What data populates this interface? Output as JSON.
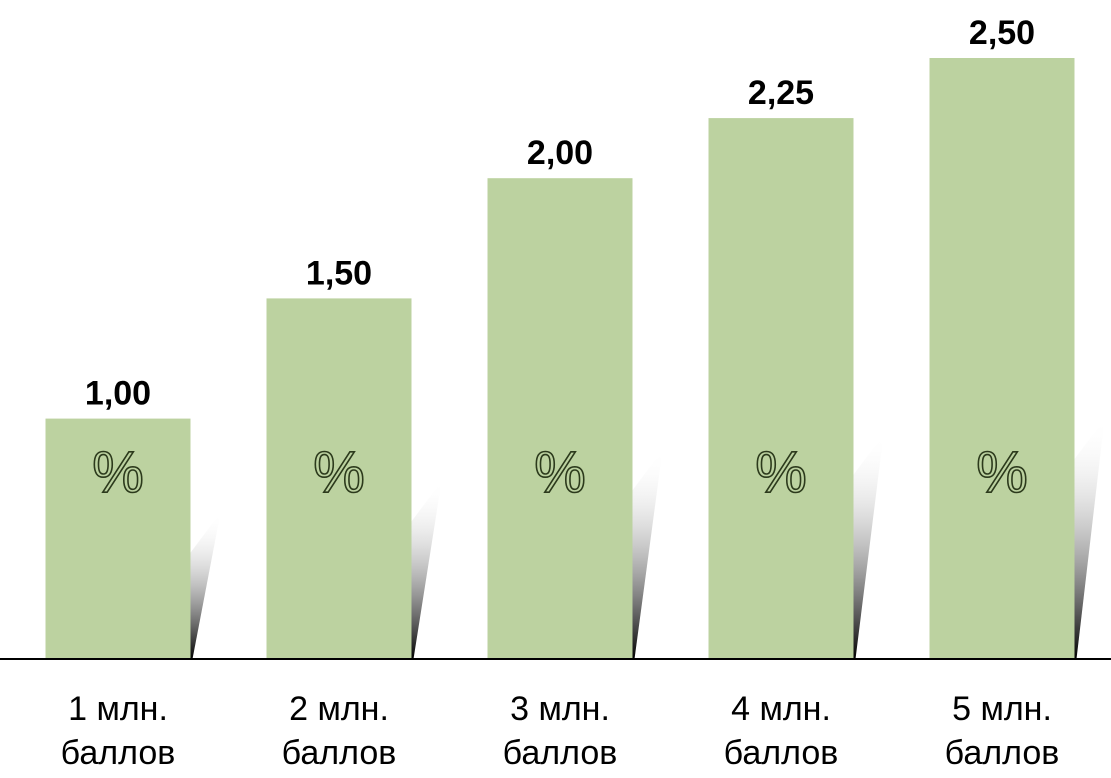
{
  "chart_data": {
    "type": "bar",
    "categories": [
      [
        "1 млн.",
        "баллов"
      ],
      [
        "2 млн.",
        "баллов"
      ],
      [
        "3 млн.",
        "баллов"
      ],
      [
        "4 млн.",
        "баллов"
      ],
      [
        "5  млн.",
        "баллов"
      ]
    ],
    "values": [
      1.0,
      1.5,
      2.0,
      2.25,
      2.5
    ],
    "data_labels": [
      "1,00",
      "1,50",
      "2,00",
      "2,25",
      "2,50"
    ],
    "bar_symbol": "%",
    "ylim": [
      0,
      2.5
    ],
    "grid": false,
    "legend": "none",
    "colors": {
      "bar": "#bcd2a0",
      "shadow_dark": "#000000",
      "shadow_light": "#ffffff",
      "axis": "#000000",
      "symbol_outline": "#2c3a1c"
    }
  }
}
